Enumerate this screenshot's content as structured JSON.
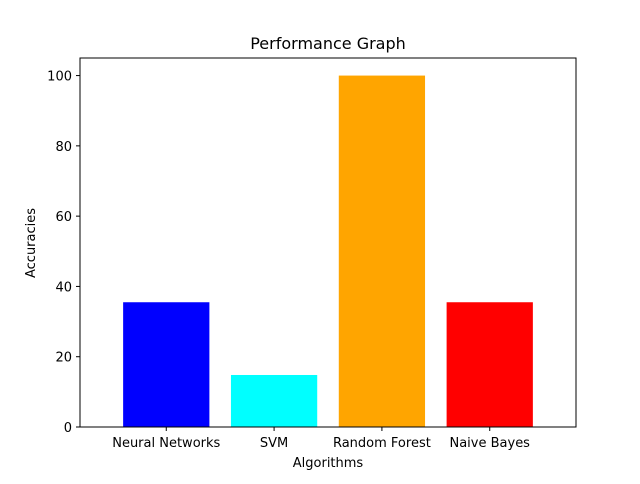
{
  "chart_data": {
    "type": "bar",
    "title": "Performance Graph",
    "xlabel": "Algorithms",
    "ylabel": "Accuracies",
    "categories": [
      "Neural Networks",
      "SVM",
      "Random Forest",
      "Naive Bayes"
    ],
    "values": [
      35.5,
      14.8,
      100,
      35.5
    ],
    "colors": [
      "#0000ff",
      "#00ffff",
      "#ffa500",
      "#ff0000"
    ],
    "ylim": [
      0,
      105
    ],
    "yticks": [
      0,
      20,
      40,
      60,
      80,
      100
    ],
    "grid": false,
    "legend": "none"
  }
}
